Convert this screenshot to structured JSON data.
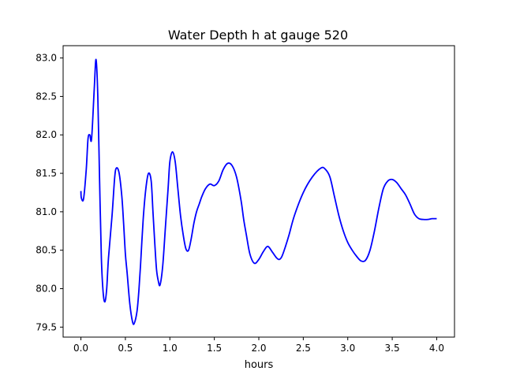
{
  "chart_data": {
    "type": "line",
    "title": "Water Depth h at gauge 520",
    "xlabel": "hours",
    "ylabel": "",
    "xlim": [
      -0.2,
      4.2
    ],
    "ylim": [
      79.37,
      83.16
    ],
    "xticks": [
      0.0,
      0.5,
      1.0,
      1.5,
      2.0,
      2.5,
      3.0,
      3.5,
      4.0
    ],
    "xtick_labels": [
      "0.0",
      "0.5",
      "1.0",
      "1.5",
      "2.0",
      "2.5",
      "3.0",
      "3.5",
      "4.0"
    ],
    "yticks": [
      79.5,
      80.0,
      80.5,
      81.0,
      81.5,
      82.0,
      82.5,
      83.0
    ],
    "ytick_labels": [
      "79.5",
      "80.0",
      "80.5",
      "81.0",
      "81.5",
      "82.0",
      "82.5",
      "83.0"
    ],
    "grid": false,
    "line_color": "#0000ff",
    "series": [
      {
        "x": [
          0.0,
          0.005,
          0.03,
          0.06,
          0.08,
          0.1,
          0.12,
          0.15,
          0.17,
          0.19,
          0.21,
          0.23,
          0.25,
          0.27,
          0.29,
          0.31,
          0.35,
          0.38,
          0.4,
          0.43,
          0.46,
          0.48,
          0.5,
          0.52,
          0.55,
          0.58,
          0.6,
          0.63,
          0.65,
          0.67,
          0.7,
          0.73,
          0.76,
          0.79,
          0.81,
          0.83,
          0.85,
          0.87,
          0.89,
          0.92,
          0.95,
          0.98,
          1.0,
          1.03,
          1.06,
          1.09,
          1.12,
          1.15,
          1.18,
          1.21,
          1.24,
          1.27,
          1.3,
          1.33,
          1.36,
          1.4,
          1.45,
          1.5,
          1.55,
          1.6,
          1.65,
          1.7,
          1.75,
          1.8,
          1.83,
          1.86,
          1.9,
          1.95,
          2.0,
          2.05,
          2.1,
          2.15,
          2.2,
          2.23,
          2.26,
          2.3,
          2.34,
          2.4,
          2.5,
          2.6,
          2.7,
          2.75,
          2.8,
          2.85,
          2.9,
          2.95,
          3.0,
          3.05,
          3.1,
          3.15,
          3.2,
          3.25,
          3.3,
          3.35,
          3.4,
          3.45,
          3.5,
          3.55,
          3.6,
          3.65,
          3.7,
          3.75,
          3.8,
          3.85,
          3.9,
          3.95,
          4.0
        ],
        "y": [
          81.27,
          81.18,
          81.17,
          81.55,
          81.95,
          82.0,
          81.95,
          82.6,
          82.98,
          82.5,
          81.4,
          80.4,
          79.95,
          79.83,
          80.0,
          80.4,
          80.95,
          81.45,
          81.57,
          81.5,
          81.2,
          80.85,
          80.45,
          80.2,
          79.8,
          79.57,
          79.55,
          79.7,
          79.95,
          80.3,
          80.9,
          81.3,
          81.5,
          81.4,
          81.0,
          80.6,
          80.25,
          80.1,
          80.05,
          80.3,
          80.8,
          81.3,
          81.65,
          81.78,
          81.65,
          81.3,
          80.95,
          80.7,
          80.52,
          80.5,
          80.65,
          80.85,
          81.0,
          81.1,
          81.2,
          81.3,
          81.36,
          81.34,
          81.4,
          81.55,
          81.63,
          81.6,
          81.45,
          81.15,
          80.9,
          80.7,
          80.45,
          80.33,
          80.38,
          80.48,
          80.55,
          80.48,
          80.4,
          80.38,
          80.42,
          80.55,
          80.7,
          80.95,
          81.25,
          81.45,
          81.57,
          81.55,
          81.45,
          81.2,
          80.95,
          80.75,
          80.6,
          80.5,
          80.42,
          80.36,
          80.37,
          80.5,
          80.75,
          81.05,
          81.3,
          81.4,
          81.42,
          81.38,
          81.3,
          81.22,
          81.1,
          80.97,
          80.91,
          80.9,
          80.9,
          80.91,
          80.91
        ]
      }
    ]
  }
}
